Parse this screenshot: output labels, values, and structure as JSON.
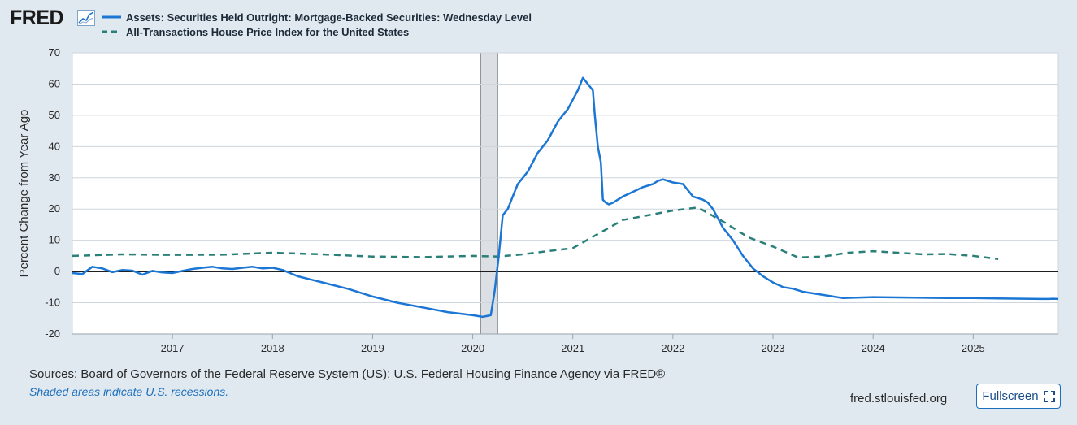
{
  "header": {
    "logo_text": "FRED",
    "logo_icon": "line-chart-icon"
  },
  "legend": [
    {
      "label": "Assets: Securities Held Outright: Mortgage-Backed Securities: Wednesday Level",
      "style": "solid",
      "color": "#1b76d4"
    },
    {
      "label": "All-Transactions House Price Index for the United States",
      "style": "dashed",
      "color": "#2a8079"
    }
  ],
  "footer": {
    "sources": "Sources: Board of Governors of the Federal Reserve System (US); U.S. Federal Housing Finance Agency via FRED®",
    "recession_note": "Shaded areas indicate U.S. recessions.",
    "site": "fred.stlouisfed.org",
    "fullscreen_label": "Fullscreen",
    "fullscreen_icon": "expand-icon"
  },
  "chart_data": {
    "type": "line",
    "title": "",
    "xlabel": "",
    "ylabel": "Percent Change from Year Ago",
    "xlim": [
      2016.0,
      2025.85
    ],
    "ylim": [
      -20,
      70
    ],
    "yticks": [
      -20,
      -10,
      0,
      10,
      20,
      30,
      40,
      50,
      60,
      70
    ],
    "xticks": [
      2017,
      2018,
      2019,
      2020,
      2021,
      2022,
      2023,
      2024,
      2025
    ],
    "zero_line": 0,
    "recession": {
      "start": 2020.08,
      "end": 2020.25
    },
    "series": [
      {
        "name": "Assets: Securities Held Outright: Mortgage-Backed Securities: Wednesday Level",
        "style": "solid",
        "color": "#1b76d4",
        "x": [
          2016.0,
          2016.1,
          2016.2,
          2016.3,
          2016.4,
          2016.5,
          2016.6,
          2016.7,
          2016.8,
          2016.9,
          2017.0,
          2017.1,
          2017.2,
          2017.3,
          2017.4,
          2017.5,
          2017.6,
          2017.7,
          2017.8,
          2017.9,
          2018.0,
          2018.1,
          2018.25,
          2018.5,
          2018.75,
          2019.0,
          2019.25,
          2019.5,
          2019.75,
          2020.0,
          2020.1,
          2020.18,
          2020.22,
          2020.26,
          2020.3,
          2020.35,
          2020.4,
          2020.45,
          2020.5,
          2020.55,
          2020.6,
          2020.65,
          2020.7,
          2020.75,
          2020.8,
          2020.85,
          2020.9,
          2020.95,
          2021.0,
          2021.05,
          2021.1,
          2021.15,
          2021.2,
          2021.22,
          2021.25,
          2021.28,
          2021.3,
          2021.33,
          2021.36,
          2021.4,
          2021.5,
          2021.6,
          2021.7,
          2021.8,
          2021.85,
          2021.9,
          2022.0,
          2022.1,
          2022.15,
          2022.2,
          2022.3,
          2022.35,
          2022.4,
          2022.5,
          2022.6,
          2022.7,
          2022.8,
          2022.9,
          2023.0,
          2023.1,
          2023.2,
          2023.3,
          2023.4,
          2023.5,
          2023.7,
          2024.0,
          2024.25,
          2024.5,
          2024.75,
          2025.0,
          2025.25,
          2025.5,
          2025.7,
          2025.75,
          2025.8,
          2025.85
        ],
        "values": [
          -0.5,
          -0.8,
          1.5,
          1.0,
          -0.2,
          0.5,
          0.3,
          -1.0,
          0.2,
          -0.3,
          -0.5,
          0.2,
          0.8,
          1.2,
          1.5,
          1.0,
          0.8,
          1.2,
          1.5,
          1.0,
          1.2,
          0.5,
          -1.5,
          -3.5,
          -5.5,
          -8.0,
          -10.0,
          -11.5,
          -13.0,
          -14.0,
          -14.5,
          -14.0,
          -6.0,
          5.0,
          18.0,
          20.0,
          24.0,
          28.0,
          30.0,
          32.0,
          35.0,
          38.0,
          40.0,
          42.0,
          45.0,
          48.0,
          50.0,
          52.0,
          55.0,
          58.0,
          62.0,
          60.0,
          58.0,
          50.0,
          40.0,
          35.0,
          23.0,
          22.0,
          21.5,
          22.0,
          24.0,
          25.5,
          27.0,
          28.0,
          29.0,
          29.5,
          28.5,
          28.0,
          26.0,
          24.0,
          23.0,
          22.0,
          20.0,
          14.0,
          10.0,
          5.0,
          1.0,
          -1.5,
          -3.5,
          -5.0,
          -5.5,
          -6.5,
          -7.0,
          -7.5,
          -8.5,
          -8.2,
          -8.3,
          -8.4,
          -8.5,
          -8.5,
          -8.6,
          -8.7,
          -8.8,
          -8.8,
          -8.7,
          -8.8
        ]
      },
      {
        "name": "All-Transactions House Price Index for the United States",
        "style": "dashed",
        "color": "#2a8079",
        "x": [
          2016.0,
          2016.5,
          2017.0,
          2017.5,
          2018.0,
          2018.5,
          2019.0,
          2019.5,
          2020.0,
          2020.25,
          2020.5,
          2020.75,
          2021.0,
          2021.25,
          2021.5,
          2021.75,
          2022.0,
          2022.25,
          2022.5,
          2022.75,
          2023.0,
          2023.25,
          2023.5,
          2023.75,
          2024.0,
          2024.25,
          2024.5,
          2024.75,
          2025.0,
          2025.25
        ],
        "values": [
          5.0,
          5.5,
          5.3,
          5.4,
          6.0,
          5.5,
          4.8,
          4.6,
          5.0,
          4.8,
          5.5,
          6.5,
          7.5,
          12.0,
          16.5,
          18.0,
          19.5,
          20.5,
          16.0,
          11.0,
          8.0,
          4.5,
          4.8,
          6.0,
          6.5,
          6.0,
          5.5,
          5.6,
          5.0,
          4.0
        ]
      }
    ]
  }
}
